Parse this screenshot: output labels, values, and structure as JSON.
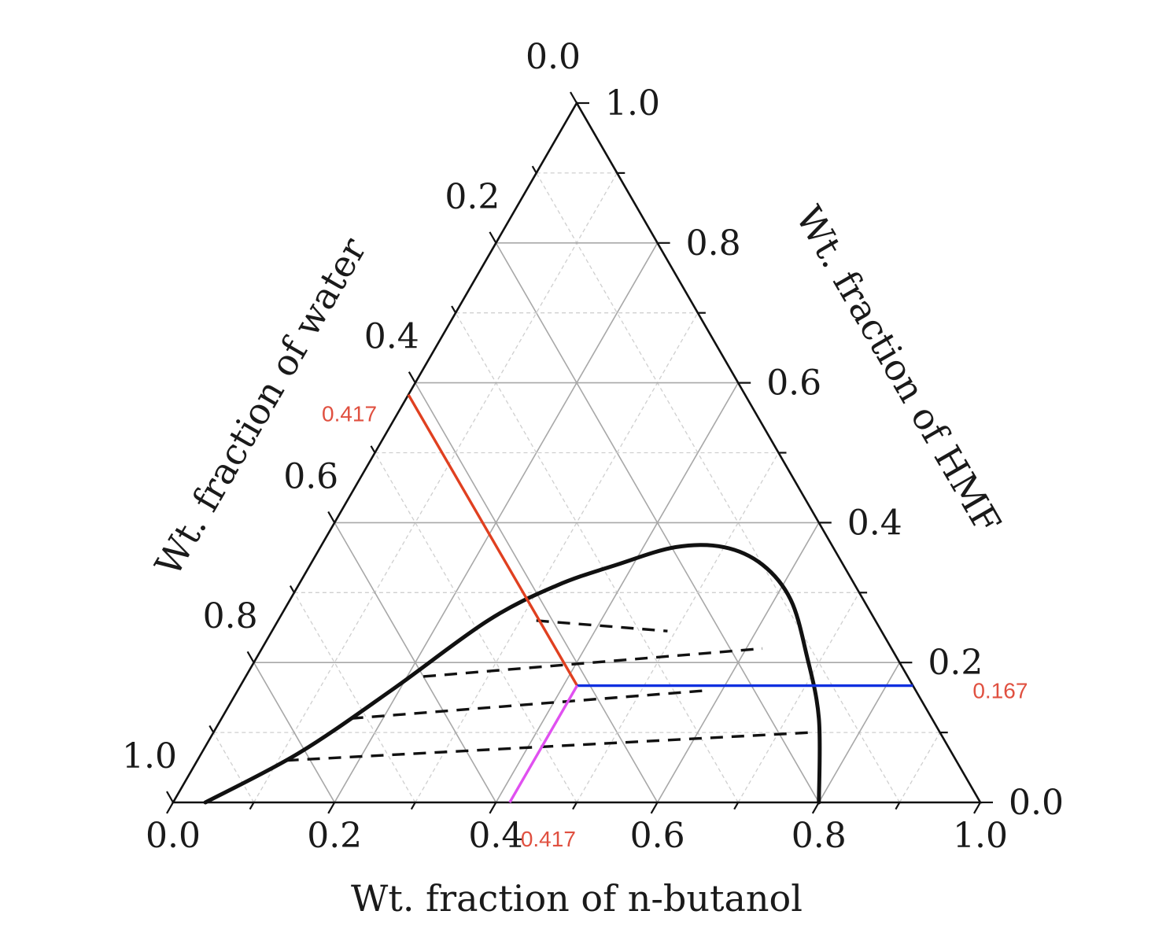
{
  "chart_data": {
    "type": "ternary",
    "axes": {
      "bottom": {
        "component": "n-butanol",
        "title": "Wt. fraction of n-butanol",
        "range": [
          0,
          1
        ],
        "tick_labels": [
          "0.0",
          "0.2",
          "0.4",
          "0.6",
          "0.8",
          "1.0"
        ]
      },
      "right": {
        "component": "HMF",
        "title": "Wt. fraction of HMF",
        "range": [
          0,
          1
        ],
        "tick_labels": [
          "0.0",
          "0.2",
          "0.4",
          "0.6",
          "0.8",
          "1.0"
        ]
      },
      "left": {
        "component": "water",
        "title": "Wt. fraction of water",
        "range": [
          0,
          1
        ],
        "tick_labels": [
          "0.0",
          "0.2",
          "0.4",
          "0.6",
          "0.8",
          "1.0"
        ]
      }
    },
    "grid": true,
    "binodal_curve": {
      "points": [
        {
          "butanol": 0.04,
          "hmf": 0.0
        },
        {
          "butanol": 0.12,
          "hmf": 0.07
        },
        {
          "butanol": 0.19,
          "hmf": 0.16
        },
        {
          "butanol": 0.26,
          "hmf": 0.26
        },
        {
          "butanol": 0.32,
          "hmf": 0.31
        },
        {
          "butanol": 0.38,
          "hmf": 0.34
        },
        {
          "butanol": 0.44,
          "hmf": 0.365
        },
        {
          "butanol": 0.5,
          "hmf": 0.365
        },
        {
          "butanol": 0.56,
          "hmf": 0.34
        },
        {
          "butanol": 0.62,
          "hmf": 0.29
        },
        {
          "butanol": 0.68,
          "hmf": 0.21
        },
        {
          "butanol": 0.74,
          "hmf": 0.12
        },
        {
          "butanol": 0.8,
          "hmf": 0.0
        }
      ]
    },
    "tie_lines": [
      {
        "start": {
          "butanol": 0.11,
          "hmf": 0.06
        },
        "end": {
          "butanol": 0.74,
          "hmf": 0.1
        }
      },
      {
        "start": {
          "butanol": 0.16,
          "hmf": 0.12
        },
        "end": {
          "butanol": 0.58,
          "hmf": 0.16
        }
      },
      {
        "start": {
          "butanol": 0.22,
          "hmf": 0.18
        },
        "end": {
          "butanol": 0.62,
          "hmf": 0.22
        }
      },
      {
        "start": {
          "butanol": 0.32,
          "hmf": 0.26
        },
        "end": {
          "butanol": 0.49,
          "hmf": 0.245
        }
      }
    ],
    "feed_point": {
      "butanol": 0.417,
      "hmf": 0.167,
      "water": 0.417
    },
    "annotations": [
      {
        "axis": "left",
        "text": "0.417",
        "color": "#e05040"
      },
      {
        "axis": "right",
        "text": "0.167",
        "color": "#e05040"
      },
      {
        "axis": "bottom",
        "text": "0.417",
        "color": "#e05040"
      }
    ],
    "colors": {
      "curve": "#111111",
      "tie_lines": "#111111",
      "water_line": "#e04020",
      "hmf_line": "#1030e0",
      "butanol_line": "#e050f0",
      "grid_major": "#a8a8a8",
      "grid_minor": "#cfcfcf"
    }
  }
}
